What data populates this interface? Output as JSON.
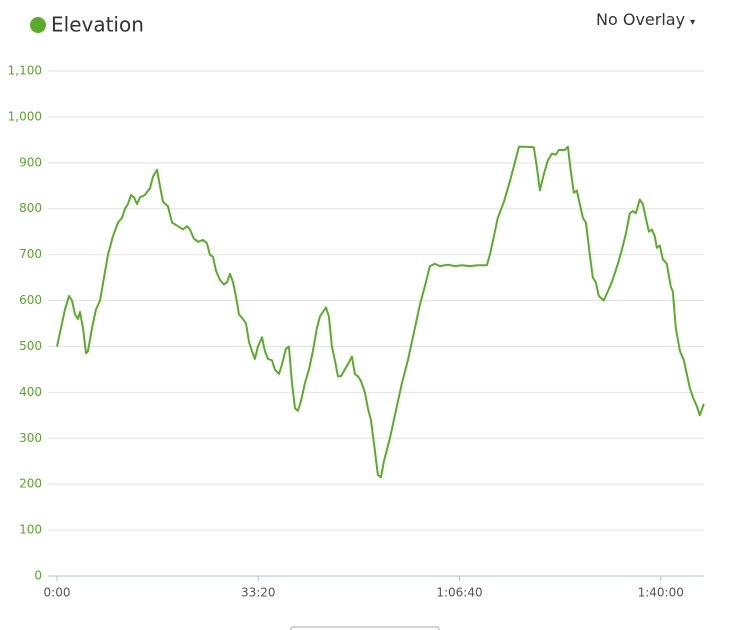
{
  "chart_data": {
    "type": "line",
    "title": "Elevation",
    "overlay": "No Overlay",
    "color": "#5aac2a",
    "x": [
      0,
      30,
      79,
      119,
      149,
      179,
      209,
      229,
      258,
      288,
      308,
      348,
      387,
      427,
      467,
      507,
      556,
      606,
      646,
      676,
      705,
      735,
      765,
      795,
      825,
      874,
      924,
      954,
      994,
      1023,
      1053,
      1103,
      1143,
      1202,
      1252,
      1292,
      1321,
      1361,
      1401,
      1451,
      1490,
      1520,
      1550,
      1580,
      1619,
      1659,
      1689,
      1719,
      1749,
      1778,
      1808,
      1848,
      1878,
      1908,
      1937,
      1967,
      1997,
      2037,
      2066,
      2096,
      2136,
      2166,
      2206,
      2235,
      2275,
      2305,
      2335,
      2365,
      2394,
      2424,
      2464,
      2504,
      2543,
      2583,
      2613,
      2643,
      2673,
      2702,
      2732,
      2762,
      2792,
      2822,
      2861,
      2901,
      2931,
      2961,
      2990,
      3020,
      3060,
      3090,
      3120,
      3149,
      3189,
      3219,
      3249,
      3308,
      3368,
      3428,
      3487,
      3547,
      3606,
      3666,
      3706,
      3755,
      3805,
      3885,
      3954,
      4024,
      4103,
      4183,
      4272,
      4302,
      4342,
      4381,
      4441,
      4501,
      4550,
      4590,
      4650,
      4739,
      4769,
      4799,
      4838,
      4878,
      4918,
      4958,
      4987,
      5047,
      5077,
      5107,
      5136,
      5166,
      5196,
      5226,
      5256,
      5295,
      5325,
      5355,
      5385,
      5434,
      5474,
      5514,
      5574,
      5613,
      5653,
      5693,
      5723,
      5752,
      5792,
      5822,
      5852,
      5882,
      5911,
      5941,
      5961,
      5991,
      6021,
      6060,
      6100,
      6120,
      6150,
      6190,
      6229,
      6259,
      6289,
      6319,
      6358,
      6388,
      6428
    ],
    "series": [
      {
        "name": "Elevation",
        "color": "#5aac2a",
        "values": [
          500,
          530,
          580,
          610,
          600,
          570,
          560,
          575,
          540,
          485,
          490,
          540,
          580,
          600,
          650,
          700,
          740,
          770,
          780,
          800,
          810,
          830,
          825,
          810,
          825,
          830,
          845,
          870,
          885,
          850,
          815,
          805,
          770,
          762,
          755,
          762,
          755,
          735,
          728,
          732,
          725,
          700,
          695,
          665,
          645,
          635,
          640,
          658,
          640,
          610,
          570,
          560,
          550,
          510,
          490,
          473,
          500,
          520,
          490,
          473,
          470,
          450,
          440,
          460,
          495,
          500,
          420,
          365,
          360,
          380,
          420,
          450,
          490,
          540,
          565,
          575,
          585,
          565,
          500,
          470,
          435,
          435,
          450,
          465,
          478,
          440,
          435,
          425,
          400,
          365,
          340,
          290,
          220,
          215,
          250,
          300,
          360,
          420,
          470,
          530,
          590,
          640,
          675,
          680,
          675,
          678,
          675,
          677,
          675,
          677,
          677,
          700,
          740,
          780,
          815,
          860,
          900,
          935,
          935,
          934,
          890,
          840,
          875,
          905,
          920,
          918,
          928,
          928,
          935,
          880,
          835,
          840,
          810,
          780,
          770,
          700,
          650,
          640,
          610,
          600,
          620,
          640,
          680,
          710,
          745,
          790,
          795,
          790,
          820,
          810,
          780,
          750,
          755,
          740,
          715,
          720,
          690,
          680,
          630,
          620,
          540,
          490,
          470,
          440,
          410,
          390,
          370,
          350,
          375
        ]
      }
    ],
    "xlim": [
      0,
      6430
    ],
    "xticks": [
      {
        "value": 0,
        "label": "0:00"
      },
      {
        "value": 2000,
        "label": "33:20"
      },
      {
        "value": 4000,
        "label": "1:06:40"
      },
      {
        "value": 6000,
        "label": "1:40:00"
      }
    ],
    "ylim": [
      0,
      1100
    ],
    "yticks": [
      0,
      100,
      200,
      300,
      400,
      500,
      600,
      700,
      800,
      900,
      {
        "value": 1000,
        "label": "1,000"
      },
      {
        "value": 1100,
        "label": "1,100"
      }
    ],
    "grid": true
  }
}
